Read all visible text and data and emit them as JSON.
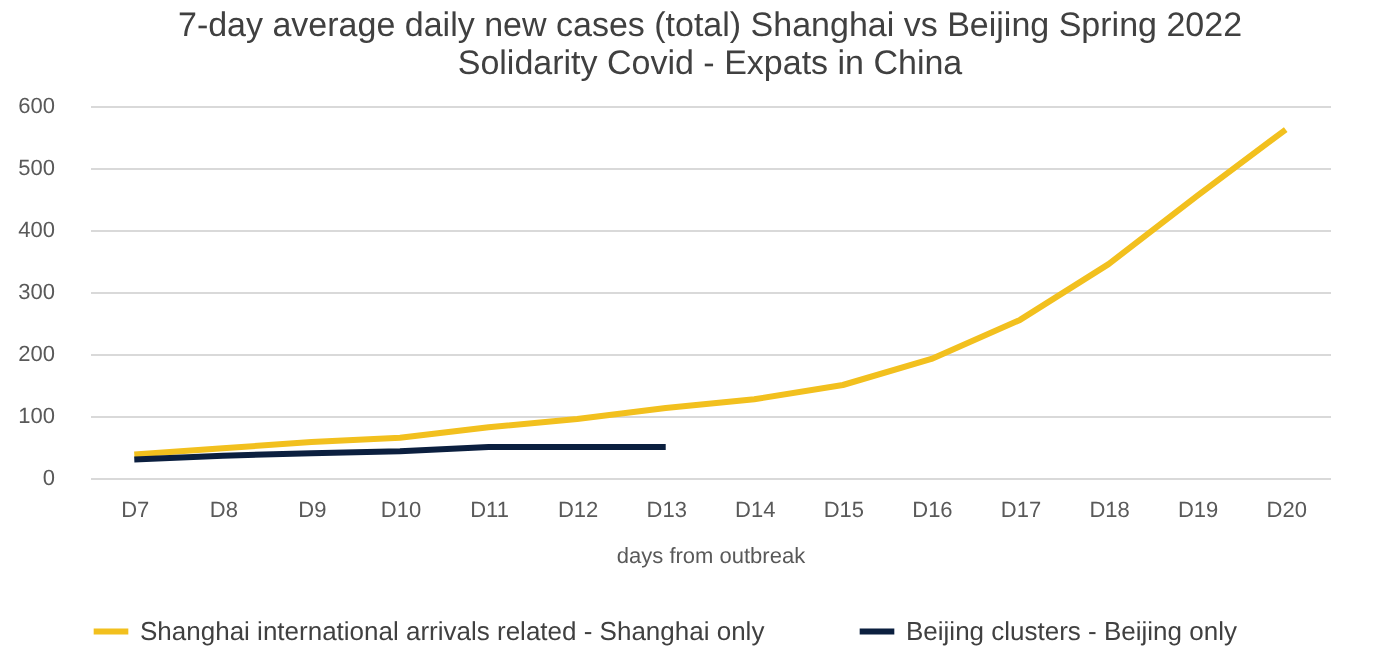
{
  "chart_data": {
    "type": "line",
    "title": "7-day average daily new cases (total) Shanghai vs Beijing Spring 2022",
    "subtitle": "Solidarity Covid - Expats in China",
    "xlabel": "days from outbreak",
    "categories": [
      "D7",
      "D8",
      "D9",
      "D10",
      "D11",
      "D12",
      "D13",
      "D14",
      "D15",
      "D16",
      "D17",
      "D18",
      "D19",
      "D20"
    ],
    "series": [
      {
        "name": "Shanghai international arrivals related - Shanghai only",
        "color": "#f2c01e",
        "values": [
          38,
          48,
          58,
          65,
          82,
          95,
          113,
          127,
          150,
          192,
          255,
          345,
          455,
          562
        ]
      },
      {
        "name": "Beijing clusters - Beijing only",
        "color": "#0b1f3f",
        "values": [
          30,
          36,
          40,
          43,
          50,
          50,
          50,
          null,
          null,
          null,
          null,
          null,
          null,
          null
        ]
      }
    ],
    "ylim": [
      0,
      600
    ],
    "yticks": [
      0,
      100,
      200,
      300,
      400,
      500,
      600
    ],
    "grid": "y",
    "legend": "bottom",
    "marker": "none",
    "line_style": "solid"
  }
}
